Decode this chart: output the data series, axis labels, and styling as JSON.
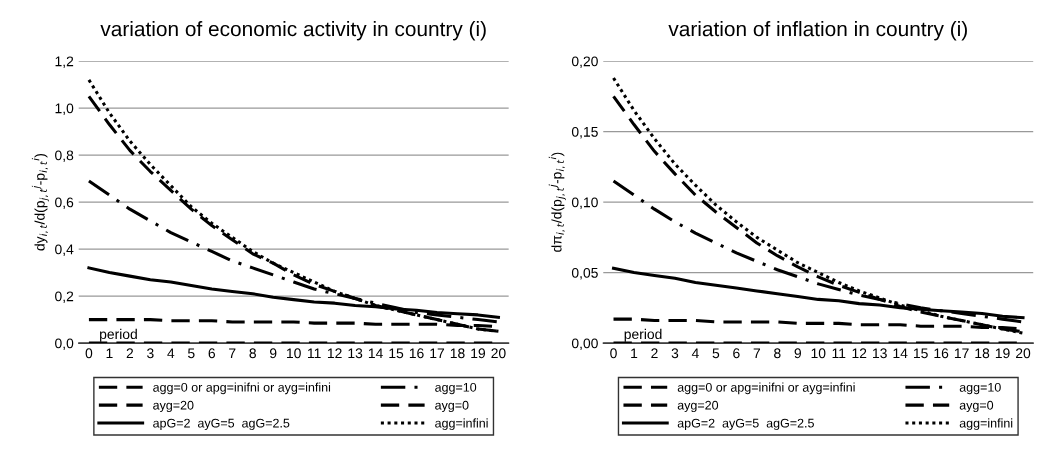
{
  "chart_data": [
    {
      "type": "line",
      "title": "variation of economic activity in country (i)",
      "ylabel": "dy$_{i,t}$/d(p$_{j,t}$$^{j}$-p$_{i,t}$$^{i}$)",
      "x": [
        0,
        1,
        2,
        3,
        4,
        5,
        6,
        7,
        8,
        9,
        10,
        11,
        12,
        13,
        14,
        15,
        16,
        17,
        18,
        19,
        20
      ],
      "xlim": [
        -0.5,
        20.5
      ],
      "xticks": [
        0,
        1,
        2,
        3,
        4,
        5,
        6,
        7,
        8,
        9,
        10,
        11,
        12,
        13,
        14,
        15,
        16,
        17,
        18,
        19,
        20
      ],
      "ylim": [
        0,
        1.2
      ],
      "yticks": [
        {
          "value": 0,
          "label": "0,0"
        },
        {
          "value": 0.2,
          "label": "0,2"
        },
        {
          "value": 0.4,
          "label": "0,4"
        },
        {
          "value": 0.6,
          "label": "0,6"
        },
        {
          "value": 0.8,
          "label": "0,8"
        },
        {
          "value": 1.0,
          "label": "1,0"
        },
        {
          "value": 1.2,
          "label": "1,2"
        }
      ],
      "grid": "y",
      "legend": "bottom",
      "annotations": [
        {
          "text": "period",
          "x": 0.5,
          "y": 0
        }
      ],
      "series": [
        {
          "name": "agg=0 or apg=inifni or ayg=infini",
          "color": "#000000",
          "line_style": "dashed",
          "values": [
            0,
            0,
            0,
            0,
            0,
            0,
            0,
            0,
            0,
            0,
            0,
            0,
            0,
            0,
            0,
            0,
            0,
            0,
            0,
            0,
            0
          ]
        },
        {
          "name": "ayg=20",
          "color": "#000000",
          "line_style": "dashed",
          "values": [
            0.1,
            0.1,
            0.1,
            0.1,
            0.095,
            0.095,
            0.095,
            0.09,
            0.09,
            0.09,
            0.09,
            0.085,
            0.085,
            0.085,
            0.08,
            0.08,
            0.08,
            0.08,
            0.075,
            0.075,
            0.07
          ]
        },
        {
          "name": "apG=2  ayG=5  agG=2.5",
          "color": "#000000",
          "line_style": "solid",
          "values": [
            0.32,
            0.3,
            0.285,
            0.27,
            0.26,
            0.245,
            0.23,
            0.22,
            0.21,
            0.195,
            0.185,
            0.175,
            0.17,
            0.16,
            0.155,
            0.145,
            0.14,
            0.13,
            0.125,
            0.12,
            0.11
          ]
        },
        {
          "name": "agg=10",
          "color": "#000000",
          "line_style": "dashdot",
          "values": [
            0.69,
            0.63,
            0.57,
            0.52,
            0.47,
            0.43,
            0.39,
            0.35,
            0.32,
            0.29,
            0.26,
            0.23,
            0.21,
            0.19,
            0.17,
            0.15,
            0.13,
            0.12,
            0.11,
            0.1,
            0.09
          ]
        },
        {
          "name": "ayg=0",
          "color": "#000000",
          "line_style": "dashed",
          "values": [
            1.05,
            0.93,
            0.82,
            0.73,
            0.65,
            0.57,
            0.5,
            0.44,
            0.38,
            0.34,
            0.29,
            0.25,
            0.22,
            0.19,
            0.16,
            0.14,
            0.12,
            0.1,
            0.08,
            0.06,
            0.05
          ]
        },
        {
          "name": "agg=infini",
          "color": "#000000",
          "line_style": "dotted",
          "values": [
            1.12,
            0.98,
            0.86,
            0.76,
            0.67,
            0.58,
            0.51,
            0.45,
            0.39,
            0.34,
            0.3,
            0.26,
            0.22,
            0.19,
            0.16,
            0.14,
            0.12,
            0.1,
            0.08,
            0.06,
            0.05
          ]
        }
      ]
    },
    {
      "type": "line",
      "title": "variation of inflation in country (i)",
      "ylabel": "dπ$_{i,t}$/d(p$_{j,t}$$^{j}$-p$_{i,t}$$^{i}$)",
      "x": [
        0,
        1,
        2,
        3,
        4,
        5,
        6,
        7,
        8,
        9,
        10,
        11,
        12,
        13,
        14,
        15,
        16,
        17,
        18,
        19,
        20
      ],
      "xlim": [
        -0.5,
        20.5
      ],
      "xticks": [
        0,
        1,
        2,
        3,
        4,
        5,
        6,
        7,
        8,
        9,
        10,
        11,
        12,
        13,
        14,
        15,
        16,
        17,
        18,
        19,
        20
      ],
      "ylim": [
        0,
        0.2
      ],
      "yticks": [
        {
          "value": 0,
          "label": "0,00"
        },
        {
          "value": 0.05,
          "label": "0,05"
        },
        {
          "value": 0.1,
          "label": "0,10"
        },
        {
          "value": 0.15,
          "label": "0,15"
        },
        {
          "value": 0.2,
          "label": "0,20"
        }
      ],
      "grid": "y",
      "legend": "bottom",
      "annotations": [
        {
          "text": "period",
          "x": 0.5,
          "y": 0
        }
      ],
      "series": [
        {
          "name": "agg=0 or apg=inifni or ayg=infini",
          "color": "#000000",
          "line_style": "dashed",
          "values": [
            0,
            0,
            0,
            0,
            0,
            0,
            0,
            0,
            0,
            0,
            0,
            0,
            0,
            0,
            0,
            0,
            0,
            0,
            0,
            0,
            0
          ]
        },
        {
          "name": "ayg=20",
          "color": "#000000",
          "line_style": "dashed",
          "values": [
            0.017,
            0.017,
            0.016,
            0.016,
            0.016,
            0.015,
            0.015,
            0.015,
            0.015,
            0.014,
            0.014,
            0.014,
            0.013,
            0.013,
            0.013,
            0.012,
            0.012,
            0.012,
            0.011,
            0.011,
            0.01
          ]
        },
        {
          "name": "apG=2  ayG=5  agG=2.5",
          "color": "#000000",
          "line_style": "solid",
          "values": [
            0.053,
            0.05,
            0.048,
            0.046,
            0.043,
            0.041,
            0.039,
            0.037,
            0.035,
            0.033,
            0.031,
            0.03,
            0.028,
            0.027,
            0.025,
            0.024,
            0.023,
            0.022,
            0.021,
            0.019,
            0.018
          ]
        },
        {
          "name": "agg=10",
          "color": "#000000",
          "line_style": "dashdot",
          "values": [
            0.115,
            0.105,
            0.095,
            0.086,
            0.078,
            0.071,
            0.064,
            0.058,
            0.052,
            0.047,
            0.042,
            0.038,
            0.034,
            0.031,
            0.028,
            0.025,
            0.023,
            0.021,
            0.019,
            0.017,
            0.015
          ]
        },
        {
          "name": "ayg=0",
          "color": "#000000",
          "line_style": "dashed",
          "values": [
            0.175,
            0.155,
            0.136,
            0.12,
            0.105,
            0.093,
            0.082,
            0.071,
            0.062,
            0.054,
            0.047,
            0.041,
            0.036,
            0.031,
            0.026,
            0.022,
            0.019,
            0.016,
            0.013,
            0.01,
            0.008
          ]
        },
        {
          "name": "agg=infini",
          "color": "#000000",
          "line_style": "dotted",
          "values": [
            0.188,
            0.165,
            0.145,
            0.127,
            0.112,
            0.098,
            0.086,
            0.075,
            0.066,
            0.057,
            0.05,
            0.043,
            0.037,
            0.032,
            0.027,
            0.023,
            0.019,
            0.016,
            0.013,
            0.01,
            0.007
          ]
        }
      ]
    }
  ]
}
